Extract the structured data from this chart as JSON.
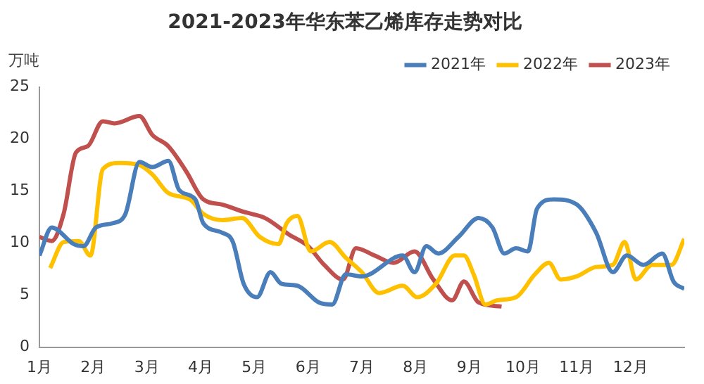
{
  "chart_data": {
    "type": "line",
    "title": "2021-2023年华东苯乙烯库存走势对比",
    "ylabel": "万吨",
    "xlim": [
      1,
      13
    ],
    "xticks": [
      {
        "value": 1,
        "label": "1月"
      },
      {
        "value": 2,
        "label": "2月"
      },
      {
        "value": 3,
        "label": "3月"
      },
      {
        "value": 4,
        "label": "4月"
      },
      {
        "value": 5,
        "label": "5月"
      },
      {
        "value": 6,
        "label": "6月"
      },
      {
        "value": 7,
        "label": "7月"
      },
      {
        "value": 8,
        "label": "8月"
      },
      {
        "value": 9,
        "label": "9月"
      },
      {
        "value": 10,
        "label": "10月"
      },
      {
        "value": 11,
        "label": "11月"
      },
      {
        "value": 12,
        "label": "12月"
      }
    ],
    "ylim": [
      0,
      25
    ],
    "yticks": [
      0,
      5,
      10,
      15,
      20,
      25
    ],
    "grid": false,
    "legend": "top right",
    "marker": "none",
    "line_style": "solid",
    "series": [
      {
        "name": "2021年",
        "color": "#4a7ebb",
        "x": [
          1,
          1.23,
          1.64,
          1.82,
          2.05,
          2.36,
          2.6,
          2.86,
          3.1,
          3.4,
          3.6,
          3.9,
          4.05,
          4.4,
          4.6,
          4.8,
          5.05,
          5.3,
          5.5,
          5.8,
          6.2,
          6.45,
          6.7,
          7.0,
          7.76,
          7.98,
          8.2,
          8.42,
          8.8,
          9.17,
          9.43,
          9.65,
          9.87,
          10.09,
          10.26,
          10.57,
          11.0,
          11.36,
          11.67,
          11.93,
          12.24,
          12.59,
          12.8,
          13.0
        ],
        "values": [
          8.8,
          11.5,
          9.9,
          9.7,
          11.5,
          11.9,
          12.8,
          17.8,
          17.3,
          17.9,
          15.1,
          14.2,
          11.9,
          11,
          10.1,
          6.1,
          4.8,
          7.2,
          6.1,
          5.9,
          4.3,
          4.1,
          7.0,
          6.8,
          8.8,
          7.2,
          9.7,
          9.0,
          10.6,
          12.4,
          11.5,
          9.0,
          9.5,
          9.2,
          13.3,
          14.2,
          13.7,
          11.0,
          7.2,
          8.8,
          7.9,
          9.0,
          6.3,
          5.6
        ]
      },
      {
        "name": "2022年",
        "color": "#ffc000",
        "x": [
          1.2,
          1.45,
          1.73,
          1.95,
          2.18,
          2.5,
          2.86,
          3.1,
          3.4,
          3.8,
          4.05,
          4.4,
          4.77,
          5.1,
          5.45,
          5.6,
          5.8,
          6.05,
          6.4,
          6.7,
          7.0,
          7.32,
          7.76,
          8.03,
          8.38,
          8.73,
          8.9,
          9.08,
          9.3,
          9.52,
          9.87,
          10.22,
          10.48,
          10.7,
          11.0,
          11.36,
          11.67,
          11.89,
          12.1,
          12.4,
          12.76,
          13.0
        ],
        "values": [
          7.6,
          10.1,
          10.2,
          8.8,
          17.1,
          17.7,
          17.5,
          16.6,
          14.8,
          14.2,
          12.8,
          12.2,
          12.4,
          10.6,
          9.9,
          11.9,
          12.6,
          9.2,
          10.1,
          8.6,
          7.2,
          5.2,
          5.9,
          4.8,
          6.1,
          8.8,
          8.8,
          7.0,
          4.1,
          4.5,
          4.8,
          7.0,
          8.1,
          6.5,
          6.8,
          7.7,
          7.9,
          10.1,
          6.5,
          7.9,
          7.9,
          10.4
        ]
      },
      {
        "name": "2023年",
        "color": "#c0504d",
        "x": [
          1,
          1.23,
          1.45,
          1.68,
          1.9,
          2.18,
          2.4,
          2.86,
          3.1,
          3.4,
          3.73,
          4.05,
          4.4,
          4.8,
          5.2,
          5.65,
          6.0,
          6.3,
          6.65,
          6.89,
          7.24,
          7.59,
          7.98,
          8.33,
          8.68,
          8.9,
          9.17,
          9.6
        ],
        "values": [
          10.6,
          10.2,
          12.8,
          18.7,
          19.3,
          21.7,
          21.5,
          22.2,
          20.4,
          19.3,
          16.9,
          14.2,
          13.7,
          13.0,
          12.4,
          10.8,
          9.7,
          7.9,
          6.5,
          9.5,
          8.8,
          8.1,
          9.2,
          6.5,
          4.5,
          6.3,
          4.3,
          3.9
        ]
      }
    ]
  }
}
